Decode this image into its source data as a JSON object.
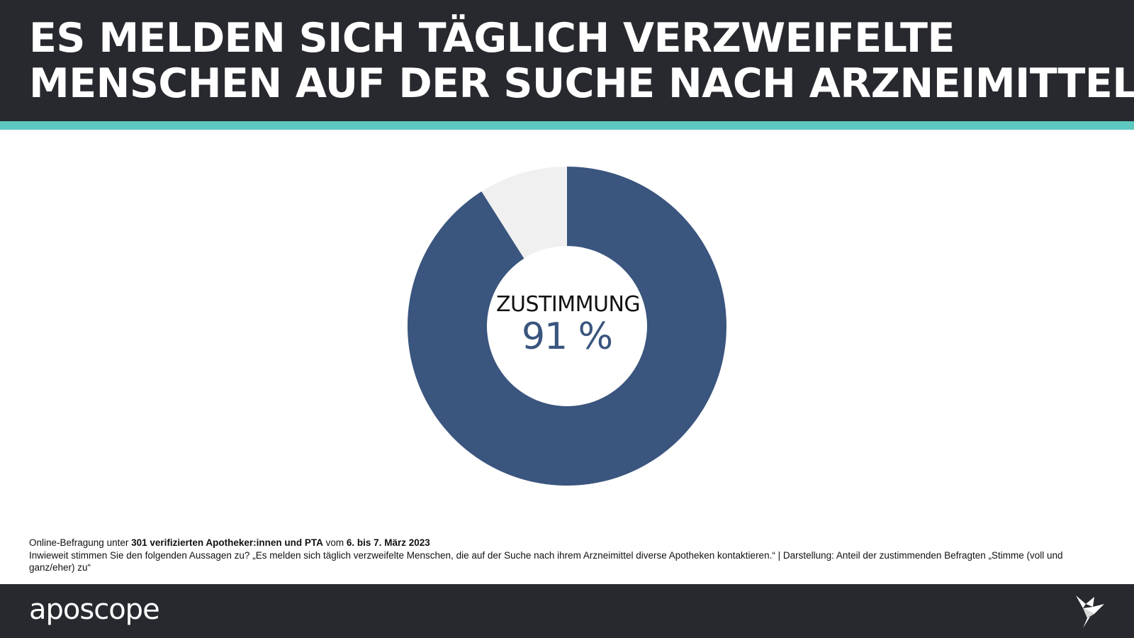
{
  "header": {
    "title_line1": "ES MELDEN SICH TÄGLICH VERZWEIFELTE",
    "title_line2": "MENSCHEN AUF DER SUCHE NACH ARZNEIMITTELN"
  },
  "colors": {
    "header_bg": "#27292e",
    "accent": "#5ec8c0",
    "series_main": "#3a557e",
    "series_rest": "#f0f0f0",
    "value_text": "#3a557e"
  },
  "chart_data": {
    "type": "pie",
    "variant": "donut",
    "title": "",
    "slices": [
      {
        "name": "",
        "value": 91
      },
      {
        "name": "",
        "value": 9
      }
    ],
    "center_label": "ZUSTIMMUNG",
    "center_value": "91 %"
  },
  "footnote": {
    "line1_prefix": "Online-Befragung unter ",
    "line1_bold1": "301 verifizierten Apotheker:innen und PTA",
    "line1_middle": " vom ",
    "line1_bold2": "6. bis 7. März 2023",
    "line2": "Inwieweit stimmen Sie den folgenden Aussagen zu? „Es melden sich täglich verzweifelte Menschen, die auf der Suche nach ihrem Arzneimittel diverse Apotheken kontaktieren.“ | Darstellung: Anteil der zustimmenden Befragten „Stimme (voll und ganz/eher) zu“"
  },
  "footer": {
    "brand": "aposcope",
    "logo_icon": "origami-bird-icon"
  }
}
